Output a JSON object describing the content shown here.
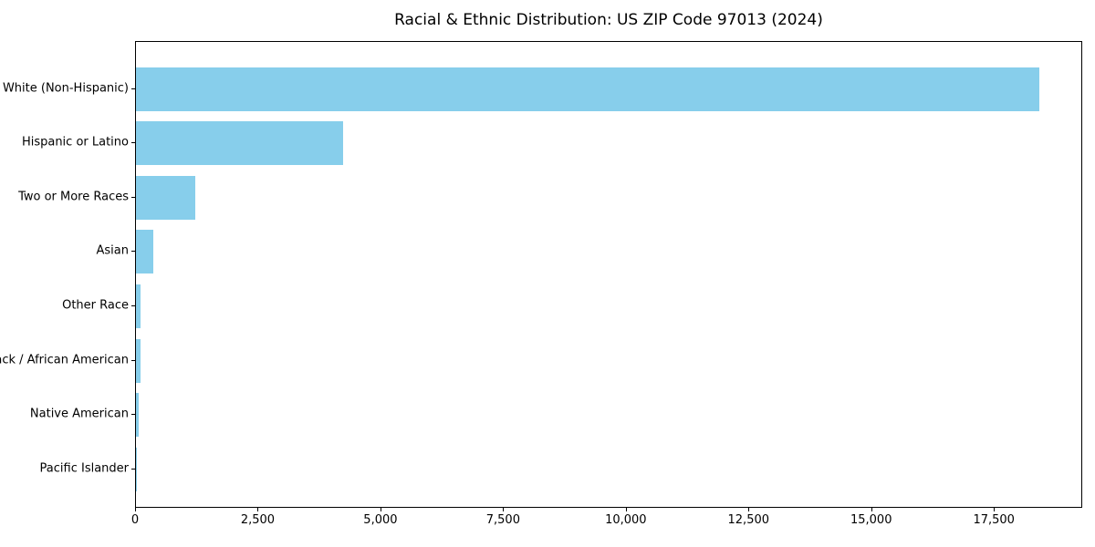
{
  "chart_data": {
    "type": "bar",
    "orientation": "horizontal",
    "title": "Racial & Ethnic Distribution: US ZIP Code 97013 (2024)",
    "categories": [
      "White (Non-Hispanic)",
      "Hispanic or Latino",
      "Two or More Races",
      "Asian",
      "Other Race",
      "Black / African American",
      "Native American",
      "Pacific Islander"
    ],
    "values": [
      18400,
      4230,
      1200,
      360,
      90,
      100,
      65,
      10
    ],
    "xlabel": "",
    "ylabel": "",
    "xlim": [
      0,
      19300
    ],
    "xticks": [
      0,
      2500,
      5000,
      7500,
      10000,
      12500,
      15000,
      17500
    ],
    "xtick_labels": [
      "0",
      "2,500",
      "5,000",
      "7,500",
      "10,000",
      "12,500",
      "15,000",
      "17,500"
    ],
    "bar_color": "#87CEEB",
    "text_color": "#000000",
    "grid": false,
    "legend": null
  }
}
